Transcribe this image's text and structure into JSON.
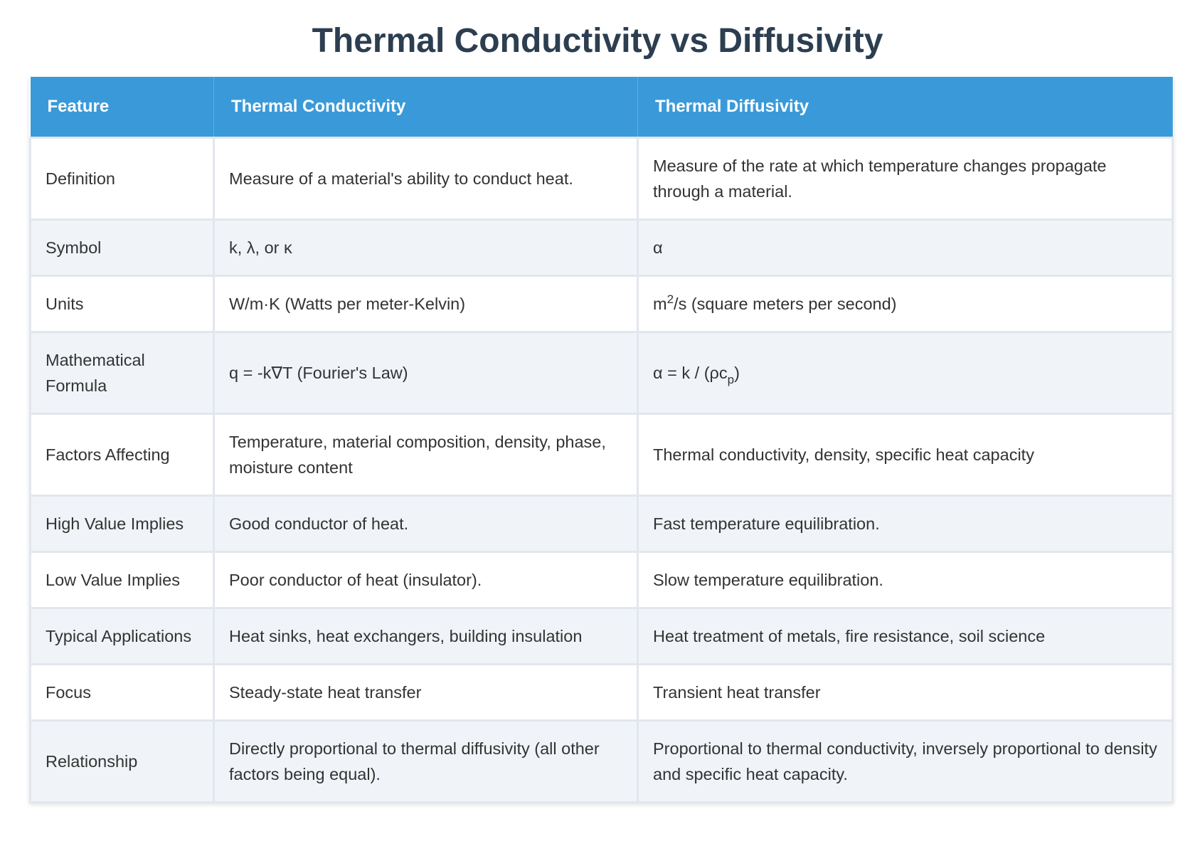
{
  "title": "Thermal Conductivity vs Diffusivity",
  "table": {
    "headers": [
      "Feature",
      "Thermal Conductivity",
      "Thermal Diffusivity"
    ],
    "rows": [
      [
        "Definition",
        "Measure of a material's ability to conduct heat.",
        "Measure of the rate at which temperature changes propagate through a material."
      ],
      [
        "Symbol",
        "k, λ, or κ",
        "α"
      ],
      [
        "Units",
        "W/m·K (Watts per meter-Kelvin)",
        [
          {
            "text": "m"
          },
          {
            "text": "2",
            "style": "sup"
          },
          {
            "text": "/s (square meters per second)"
          }
        ]
      ],
      [
        "Mathematical Formula",
        "q = -k∇T (Fourier's Law)",
        [
          {
            "text": "α = k / (ρc"
          },
          {
            "text": "p",
            "style": "sub"
          },
          {
            "text": ")"
          }
        ]
      ],
      [
        "Factors Affecting",
        "Temperature, material composition, density, phase, moisture content",
        "Thermal conductivity, density, specific heat capacity"
      ],
      [
        "High Value Implies",
        "Good conductor of heat.",
        "Fast temperature equilibration."
      ],
      [
        "Low Value Implies",
        "Poor conductor of heat (insulator).",
        "Slow temperature equilibration."
      ],
      [
        "Typical Applications",
        "Heat sinks, heat exchangers, building insulation",
        "Heat treatment of metals, fire resistance, soil science"
      ],
      [
        "Focus",
        "Steady-state heat transfer",
        "Transient heat transfer"
      ],
      [
        "Relationship",
        "Directly proportional to thermal diffusivity (all other factors being equal).",
        "Proportional to thermal conductivity, inversely proportional to density and specific heat capacity."
      ]
    ]
  }
}
